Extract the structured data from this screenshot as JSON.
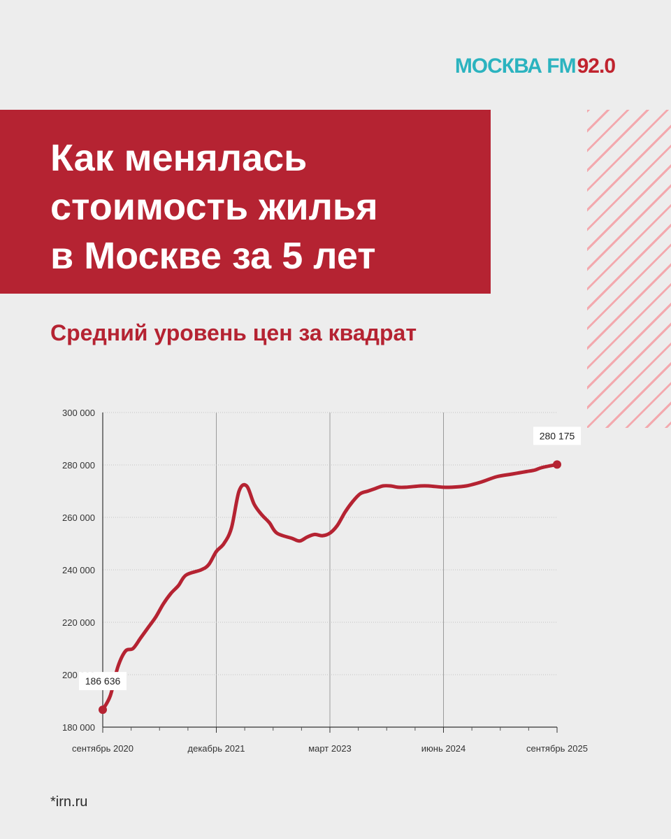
{
  "logo": {
    "name": "МОСКВА FM",
    "frequency": "92.0"
  },
  "title": "Как менялась\nстоимость жилья\nв Москве за 5 лет",
  "subtitle": "Средний уровень цен за квадрат",
  "source": "*irn.ru",
  "colors": {
    "accent": "#b52332",
    "logo": "#2bb3bf",
    "stripes": "#f3a9ae"
  },
  "chart_data": {
    "type": "line",
    "title": "Средний уровень цен за квадрат",
    "xlabel": "",
    "ylabel": "",
    "x_tick_labels": [
      "сентябрь 2020",
      "декабрь 2021",
      "март 2023",
      "июнь 2024",
      "сентябрь 2025"
    ],
    "y_ticks": [
      "180 000",
      "200 000",
      "220 000",
      "240 000",
      "260 000",
      "280 000",
      "300 000"
    ],
    "ylim": [
      180000,
      300000
    ],
    "grid": true,
    "annotations": [
      {
        "label": "186 636",
        "month": 0,
        "value": 186636
      },
      {
        "label": "280 175",
        "month": 60,
        "value": 280175
      }
    ],
    "series": [
      {
        "values": [
          186636,
          192000,
          203000,
          209000,
          210000,
          214000,
          218000,
          222000,
          227000,
          231000,
          234000,
          238000,
          240000,
          242000,
          247000,
          250000,
          256000,
          270000,
          272000,
          265000,
          261000,
          258000,
          254000,
          252000,
          251000,
          252500,
          253500,
          253000,
          254000,
          257000,
          262000,
          266000,
          269000,
          270000,
          271000,
          272000,
          272000,
          271500,
          271500,
          272000,
          272000,
          271500,
          271500,
          272000,
          273500,
          275500,
          276500,
          277000,
          277500,
          278000,
          279000,
          280175
        ]
      }
    ],
    "x_months": [
      0,
      1,
      2,
      3,
      4,
      5,
      6,
      7,
      8,
      9,
      10,
      11,
      13,
      14,
      15,
      16,
      17,
      18,
      19,
      20,
      21,
      22,
      23,
      25,
      26,
      27,
      28,
      29,
      30,
      31,
      32,
      33,
      34,
      35,
      36,
      37,
      38,
      39,
      40,
      42,
      43,
      45,
      46,
      48,
      50,
      52,
      54,
      55,
      56,
      57,
      58,
      60
    ]
  }
}
